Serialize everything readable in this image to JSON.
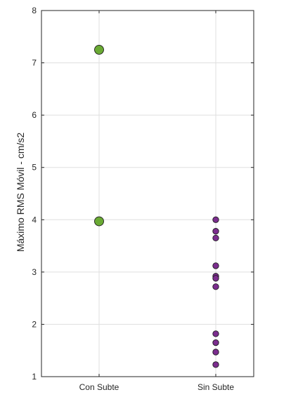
{
  "chart_data": {
    "type": "scatter",
    "title": "",
    "xlabel": "",
    "ylabel": "Máximo RMS Móvil - cm/s2",
    "categories": [
      "Con Subte",
      "Sin Subte"
    ],
    "ylim": [
      1,
      8
    ],
    "yticks": [
      1,
      2,
      3,
      4,
      5,
      6,
      7,
      8
    ],
    "grid": true,
    "series": [
      {
        "category": "Con Subte",
        "color": "#6aaa34",
        "marker_size": "large",
        "values": [
          7.25,
          3.97
        ]
      },
      {
        "category": "Sin Subte",
        "color": "#7b2d8e",
        "marker_size": "small",
        "values": [
          4.0,
          3.78,
          3.65,
          3.12,
          2.92,
          2.88,
          2.72,
          1.82,
          1.65,
          1.47,
          1.23
        ]
      }
    ]
  },
  "colors": {
    "axis": "#262626",
    "grid": "#dfdfdf",
    "marker_edge": "#1e1e1e"
  }
}
